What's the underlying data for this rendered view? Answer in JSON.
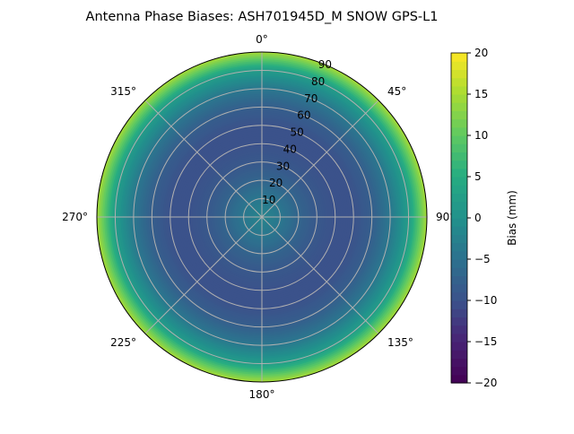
{
  "chart_data": {
    "type": "heatmap",
    "projection": "polar",
    "title": "Antenna Phase Biases: ASH701945D_M    SNOW GPS-L1",
    "angular_ticks": [
      "0°",
      "45°",
      "90°",
      "135°",
      "180°",
      "225°",
      "270°",
      "315°"
    ],
    "radial_ticks": [
      "10",
      "20",
      "30",
      "40",
      "50",
      "60",
      "70",
      "80",
      "90"
    ],
    "radial_range": [
      0,
      90
    ],
    "grid": true,
    "colormap": "viridis",
    "colorbar": {
      "label": "Bias (mm)",
      "range": [
        -20,
        20
      ],
      "ticks": [
        "20",
        "15",
        "10",
        "5",
        "0",
        "−5",
        "−10",
        "−15",
        "−20"
      ]
    },
    "radial_profile": {
      "zenith_deg": [
        0,
        10,
        20,
        30,
        40,
        50,
        60,
        70,
        80,
        90
      ],
      "bias_mm": [
        -2,
        -4,
        -7,
        -9,
        -10,
        -10,
        -8,
        -4,
        2,
        15
      ]
    }
  }
}
